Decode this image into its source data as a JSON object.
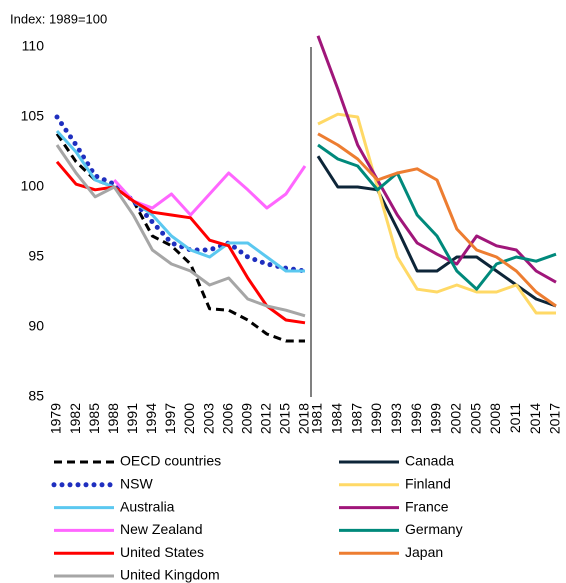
{
  "chart_data": [
    {
      "type": "line",
      "subtitle": "Index: 1989=100",
      "x": [
        1979,
        1982,
        1985,
        1988,
        1991,
        1994,
        1997,
        2000,
        2003,
        2006,
        2009,
        2012,
        2015,
        2018
      ],
      "xlim": [
        1979,
        2018
      ],
      "xticks": [
        1979,
        1982,
        1985,
        1988,
        1991,
        1994,
        1997,
        2000,
        2003,
        2006,
        2009,
        2012,
        2015,
        2018
      ],
      "ylim": [
        85,
        110
      ],
      "yticks": [
        85,
        90,
        95,
        100,
        105,
        110
      ],
      "series": [
        {
          "name": "OECD countries",
          "color": "#000000",
          "dash": "dashed",
          "values": [
            103.8,
            101.8,
            100.5,
            100,
            99,
            96.5,
            95.8,
            94.5,
            91.3,
            91.2,
            90.5,
            89.5,
            89,
            89
          ]
        },
        {
          "name": "NSW",
          "color": "#1f2fbf",
          "dash": "dotted",
          "values": [
            105,
            103,
            100.8,
            100.2,
            99,
            97.5,
            96,
            95.5,
            95.5,
            96,
            95,
            94.5,
            94.2,
            94
          ]
        },
        {
          "name": "Australia",
          "color": "#5bc8f0",
          "values": [
            104,
            102.5,
            100.5,
            100,
            99,
            98,
            96.5,
            95.5,
            95,
            96,
            96,
            95,
            94,
            94
          ]
        },
        {
          "name": "New Zealand",
          "color": "#ff66ff",
          "values": [
            null,
            null,
            null,
            100.5,
            99,
            98.5,
            99.5,
            98,
            99.5,
            101,
            99.8,
            98.5,
            99.5,
            101.5
          ]
        },
        {
          "name": "United States",
          "color": "#ff0000",
          "values": [
            101.8,
            100.2,
            99.8,
            100,
            99,
            98.2,
            98,
            97.8,
            96.2,
            95.8,
            93.5,
            91.5,
            90.5,
            90.3
          ]
        },
        {
          "name": "United Kingdom",
          "color": "#a6a6a6",
          "values": [
            103,
            101,
            99.3,
            100,
            98,
            95.5,
            94.5,
            94,
            93,
            93.5,
            92,
            91.5,
            91.2,
            90.8
          ]
        }
      ]
    },
    {
      "type": "line",
      "x": [
        1981,
        1984,
        1987,
        1990,
        1993,
        1996,
        1999,
        2002,
        2005,
        2008,
        2011,
        2014,
        2017
      ],
      "xlim": [
        1981,
        2017
      ],
      "xticks": [
        1981,
        1984,
        1987,
        1990,
        1993,
        1996,
        1999,
        2002,
        2005,
        2008,
        2011,
        2014,
        2017
      ],
      "ylim": [
        85,
        110
      ],
      "series": [
        {
          "name": "Canada",
          "color": "#0d2538",
          "values": [
            102.2,
            100,
            100,
            99.8,
            97,
            94,
            94,
            95,
            95,
            94,
            93,
            92,
            91.5
          ]
        },
        {
          "name": "Finland",
          "color": "#ffd966",
          "values": [
            104.5,
            105.2,
            105,
            100,
            95,
            92.7,
            92.5,
            93,
            92.5,
            92.5,
            93,
            91,
            91
          ]
        },
        {
          "name": "France",
          "color": "#a0167a",
          "values": [
            110.8,
            107,
            103,
            100.5,
            98,
            96,
            95.2,
            94.5,
            96.5,
            95.8,
            95.5,
            94,
            93.2
          ]
        },
        {
          "name": "Germany",
          "color": "#00897b",
          "values": [
            103,
            102,
            101.5,
            99.8,
            101,
            98,
            96.5,
            94,
            92.7,
            94.5,
            95,
            94.7,
            95.2
          ]
        },
        {
          "name": "Japan",
          "color": "#ed7d31",
          "values": [
            103.8,
            103,
            102,
            100.5,
            101,
            101.3,
            100.5,
            97,
            95.5,
            95,
            94,
            92.5,
            91.5
          ]
        }
      ]
    }
  ]
}
